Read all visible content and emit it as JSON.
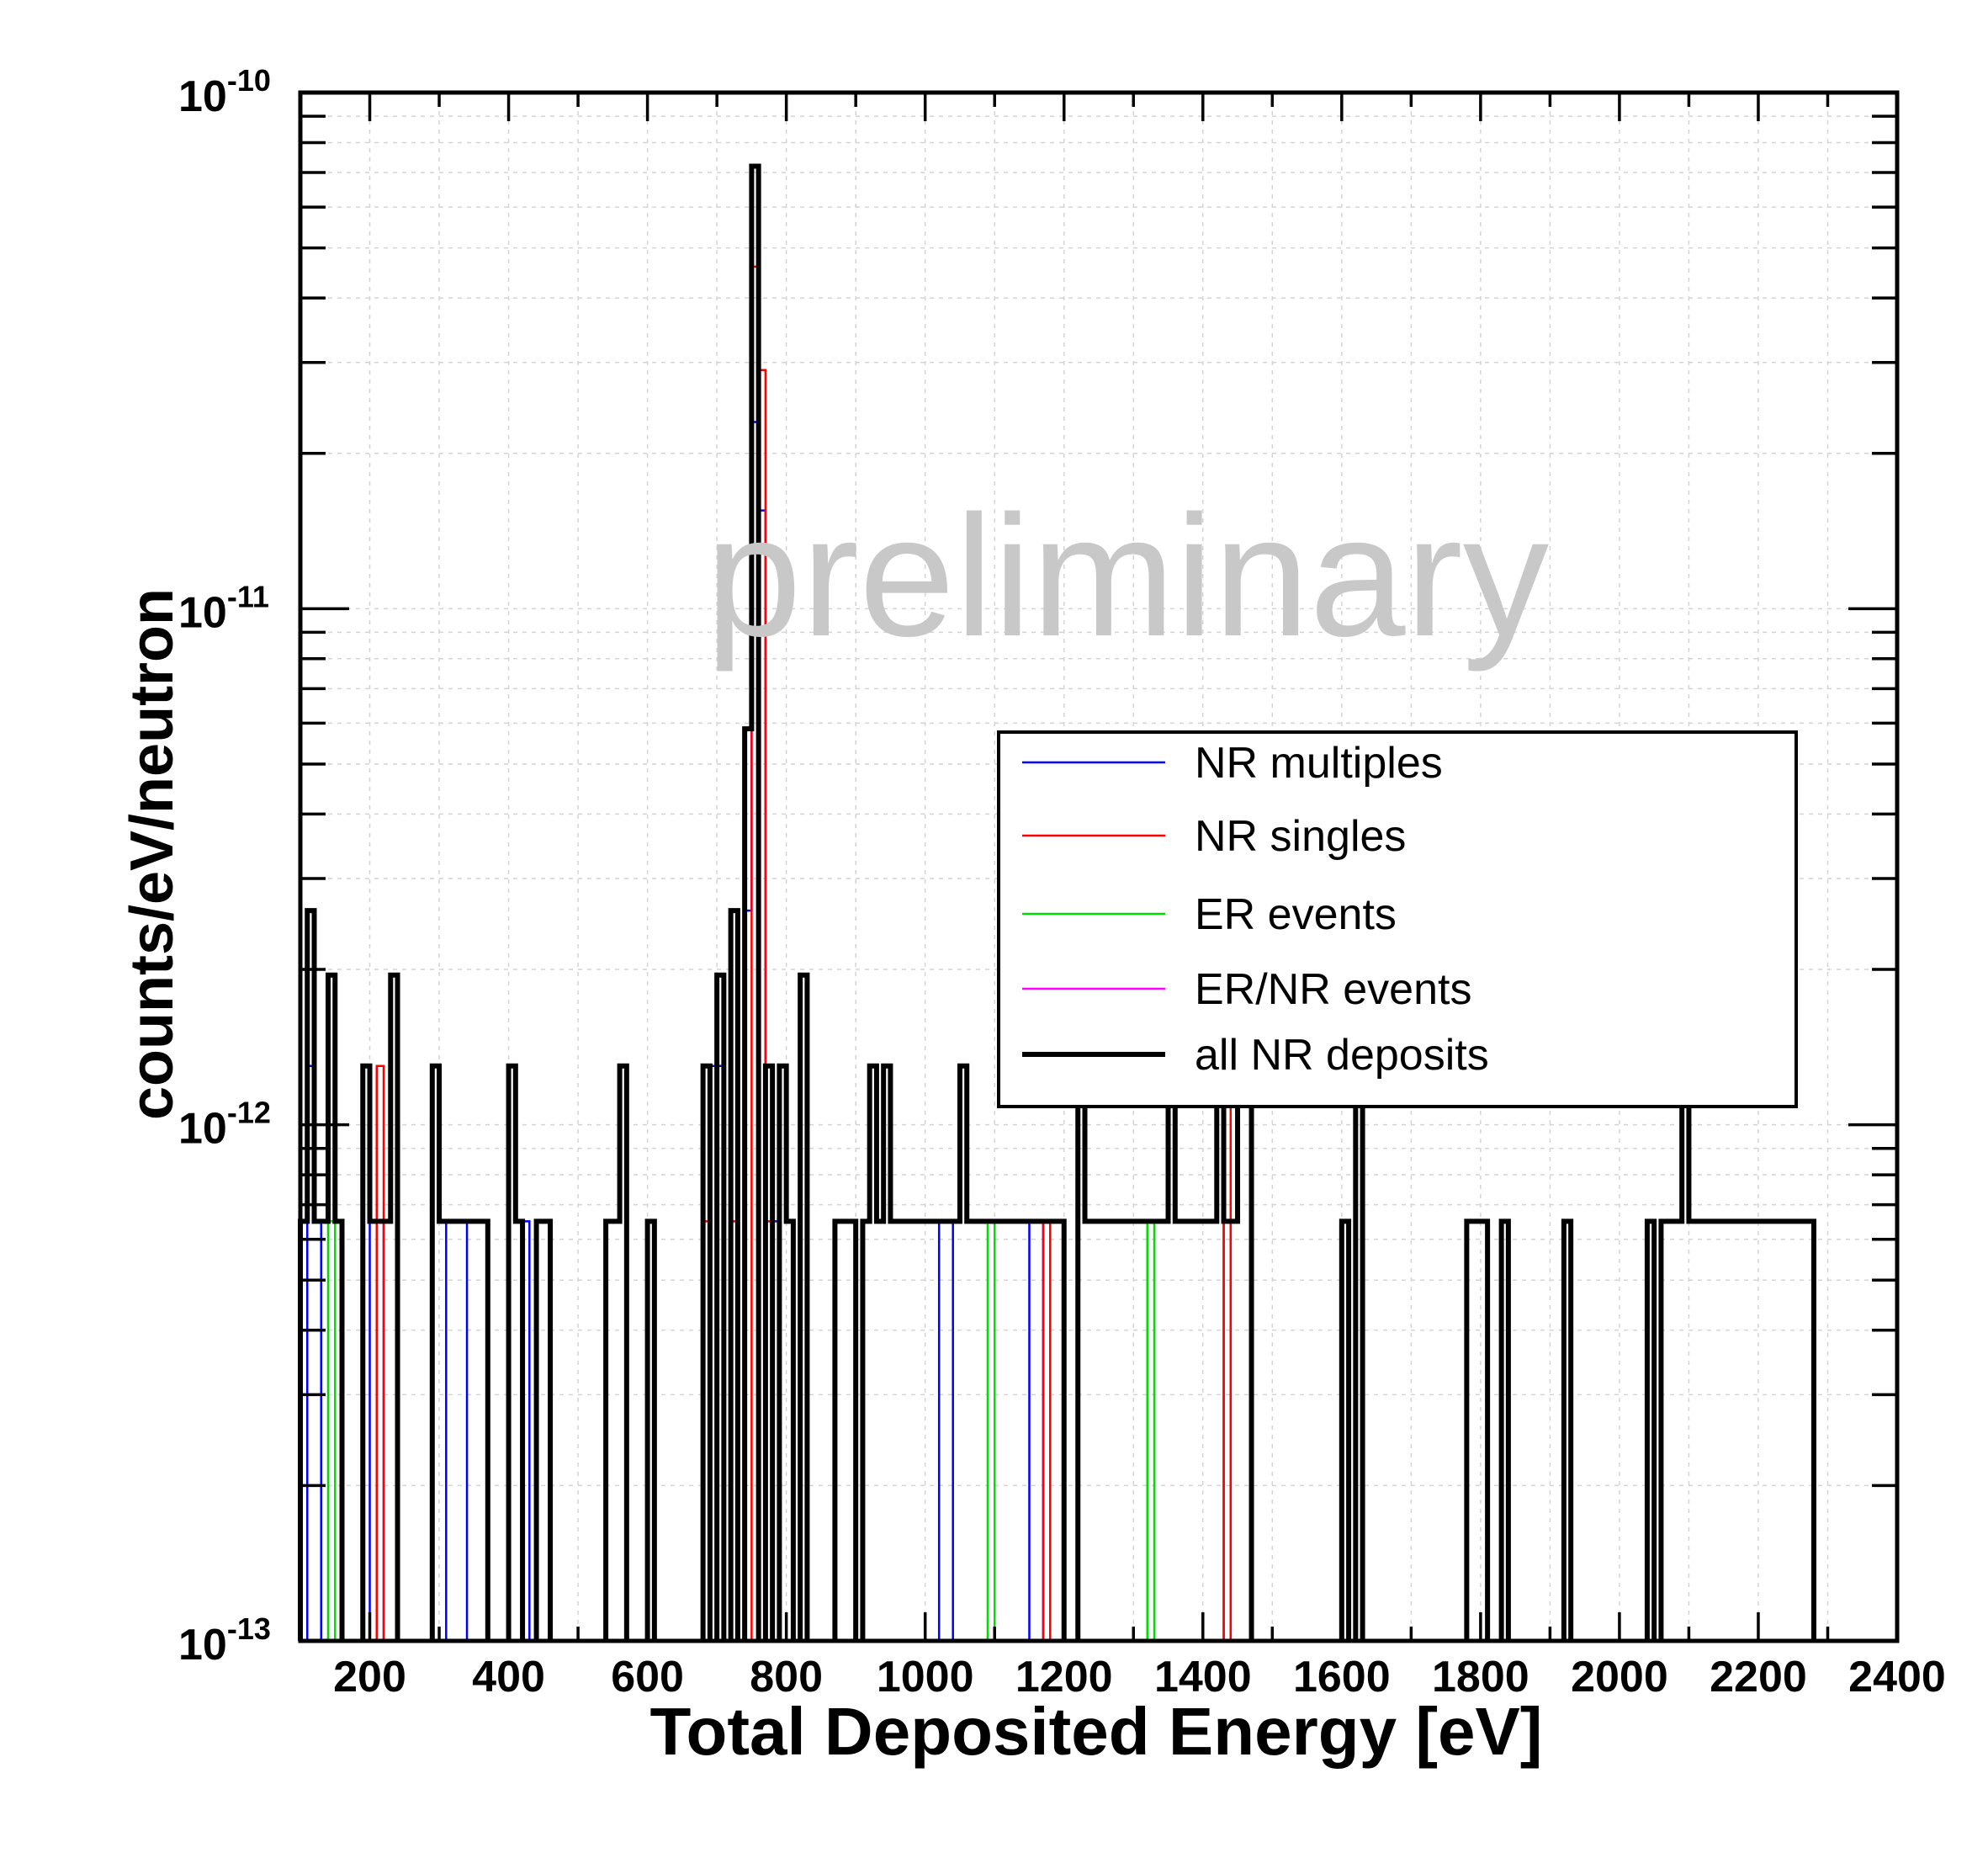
{
  "chart_data": {
    "type": "histogram",
    "xlabel": "Total Deposited Energy [eV]",
    "ylabel": "counts/eV/neutron",
    "watermark": "preliminary",
    "x_scale": "linear",
    "y_scale": "log",
    "xlim": [
      100,
      2400
    ],
    "ylim": [
      1e-13,
      1e-10
    ],
    "bin_width": 10,
    "grid": true,
    "legend_position": "right-middle",
    "x_tick_labels": [
      "200",
      "400",
      "600",
      "800",
      "1000",
      "1200",
      "1400",
      "1600",
      "1800",
      "2000",
      "2200",
      "2400"
    ],
    "x_tick_values": [
      200,
      400,
      600,
      800,
      1000,
      1200,
      1400,
      1600,
      1800,
      2000,
      2200,
      2400
    ],
    "y_tick_labels": [
      {
        "base": "10",
        "exp": "-10",
        "value": 1e-10
      },
      {
        "base": "10",
        "exp": "-11",
        "value": 1e-11
      },
      {
        "base": "10",
        "exp": "-12",
        "value": 1e-12
      },
      {
        "base": "10",
        "exp": "-13",
        "value": 1e-13
      }
    ],
    "series": [
      {
        "name": "all NR deposits",
        "color": "#000000",
        "legend_style": "thick",
        "bins": [
          [
            100,
            6.5e-13
          ],
          [
            110,
            2.6e-12
          ],
          [
            120,
            6.5e-13
          ],
          [
            130,
            6.5e-13
          ],
          [
            140,
            1.95e-12
          ],
          [
            150,
            6.5e-13
          ],
          [
            190,
            1.3e-12
          ],
          [
            200,
            6.5e-13
          ],
          [
            210,
            6.5e-13
          ],
          [
            220,
            6.5e-13
          ],
          [
            230,
            1.95e-12
          ],
          [
            290,
            1.3e-12
          ],
          [
            300,
            6.5e-13
          ],
          [
            310,
            6.5e-13
          ],
          [
            320,
            6.5e-13
          ],
          [
            330,
            6.5e-13
          ],
          [
            340,
            6.5e-13
          ],
          [
            350,
            6.5e-13
          ],
          [
            360,
            6.5e-13
          ],
          [
            400,
            1.3e-12
          ],
          [
            410,
            6.5e-13
          ],
          [
            440,
            6.5e-13
          ],
          [
            450,
            6.5e-13
          ],
          [
            540,
            6.5e-13
          ],
          [
            550,
            6.5e-13
          ],
          [
            560,
            1.3e-12
          ],
          [
            600,
            6.5e-13
          ],
          [
            680,
            1.3e-12
          ],
          [
            700,
            1.95e-12
          ],
          [
            720,
            2.6e-12
          ],
          [
            740,
            5.85e-12
          ],
          [
            750,
            7.2e-11
          ],
          [
            770,
            1.3e-12
          ],
          [
            790,
            1.3e-12
          ],
          [
            800,
            6.5e-13
          ],
          [
            820,
            1.95e-12
          ],
          [
            870,
            6.5e-13
          ],
          [
            880,
            6.5e-13
          ],
          [
            890,
            6.5e-13
          ],
          [
            910,
            6.5e-13
          ],
          [
            920,
            1.3e-12
          ],
          [
            930,
            6.5e-13
          ],
          [
            940,
            1.3e-12
          ],
          [
            950,
            6.5e-13
          ],
          [
            960,
            6.5e-13
          ],
          [
            970,
            6.5e-13
          ],
          [
            980,
            6.5e-13
          ],
          [
            990,
            6.5e-13
          ],
          [
            1000,
            6.5e-13
          ],
          [
            1010,
            6.5e-13
          ],
          [
            1020,
            6.5e-13
          ],
          [
            1030,
            6.5e-13
          ],
          [
            1040,
            6.5e-13
          ],
          [
            1050,
            1.3e-12
          ],
          [
            1060,
            6.5e-13
          ],
          [
            1070,
            6.5e-13
          ],
          [
            1080,
            6.5e-13
          ],
          [
            1090,
            6.5e-13
          ],
          [
            1100,
            6.5e-13
          ],
          [
            1110,
            6.5e-13
          ],
          [
            1120,
            6.5e-13
          ],
          [
            1130,
            6.5e-13
          ],
          [
            1140,
            6.5e-13
          ],
          [
            1150,
            6.5e-13
          ],
          [
            1160,
            6.5e-13
          ],
          [
            1170,
            6.5e-13
          ],
          [
            1180,
            6.5e-13
          ],
          [
            1190,
            6.5e-13
          ],
          [
            1220,
            1.3e-12
          ],
          [
            1230,
            6.5e-13
          ],
          [
            1240,
            6.5e-13
          ],
          [
            1250,
            6.5e-13
          ],
          [
            1260,
            6.5e-13
          ],
          [
            1270,
            6.5e-13
          ],
          [
            1280,
            6.5e-13
          ],
          [
            1290,
            6.5e-13
          ],
          [
            1300,
            6.5e-13
          ],
          [
            1310,
            6.5e-13
          ],
          [
            1320,
            6.5e-13
          ],
          [
            1330,
            6.5e-13
          ],
          [
            1340,
            6.5e-13
          ],
          [
            1350,
            1.3e-12
          ],
          [
            1360,
            6.5e-13
          ],
          [
            1370,
            6.5e-13
          ],
          [
            1380,
            6.5e-13
          ],
          [
            1390,
            6.5e-13
          ],
          [
            1400,
            6.5e-13
          ],
          [
            1410,
            6.5e-13
          ],
          [
            1420,
            1.3e-12
          ],
          [
            1430,
            6.5e-13
          ],
          [
            1440,
            6.5e-13
          ],
          [
            1450,
            1.3e-12
          ],
          [
            1460,
            1.3e-12
          ],
          [
            1600,
            6.5e-13
          ],
          [
            1620,
            1.3e-12
          ],
          [
            1780,
            6.5e-13
          ],
          [
            1790,
            6.5e-13
          ],
          [
            1800,
            6.5e-13
          ],
          [
            1830,
            6.5e-13
          ],
          [
            1920,
            6.5e-13
          ],
          [
            2040,
            6.5e-13
          ],
          [
            2060,
            6.5e-13
          ],
          [
            2070,
            6.5e-13
          ],
          [
            2080,
            6.5e-13
          ],
          [
            2090,
            1.3e-12
          ],
          [
            2100,
            6.5e-13
          ],
          [
            2110,
            6.5e-13
          ],
          [
            2120,
            6.5e-13
          ],
          [
            2130,
            6.5e-13
          ],
          [
            2140,
            6.5e-13
          ],
          [
            2150,
            6.5e-13
          ],
          [
            2160,
            6.5e-13
          ],
          [
            2170,
            6.5e-13
          ],
          [
            2180,
            6.5e-13
          ],
          [
            2190,
            6.5e-13
          ],
          [
            2200,
            6.5e-13
          ],
          [
            2210,
            6.5e-13
          ],
          [
            2220,
            6.5e-13
          ],
          [
            2230,
            6.5e-13
          ],
          [
            2240,
            6.5e-13
          ],
          [
            2250,
            6.5e-13
          ],
          [
            2260,
            6.5e-13
          ],
          [
            2270,
            6.5e-13
          ]
        ]
      },
      {
        "name": "NR multiples",
        "color": "#0000ff",
        "legend_style": "thin",
        "bins": [
          [
            110,
            1.3e-12
          ],
          [
            120,
            6.5e-13
          ],
          [
            200,
            6.5e-13
          ],
          [
            210,
            6.5e-13
          ],
          [
            310,
            6.5e-13
          ],
          [
            320,
            6.5e-13
          ],
          [
            330,
            6.5e-13
          ],
          [
            420,
            6.5e-13
          ],
          [
            690,
            1.3e-12
          ],
          [
            700,
            1.3e-12
          ],
          [
            740,
            2.6e-12
          ],
          [
            750,
            2.3e-11
          ],
          [
            760,
            1.55e-11
          ],
          [
            770,
            1.3e-12
          ],
          [
            780,
            6.5e-13
          ],
          [
            1020,
            6.5e-13
          ],
          [
            1030,
            6.5e-13
          ],
          [
            1150,
            6.5e-13
          ],
          [
            1160,
            6.5e-13
          ],
          [
            1430,
            6.5e-13
          ]
        ]
      },
      {
        "name": "NR singles",
        "color": "#ff0000",
        "legend_style": "thin",
        "bins": [
          [
            210,
            1.3e-12
          ],
          [
            680,
            6.5e-13
          ],
          [
            720,
            6.5e-13
          ],
          [
            750,
            4.6e-11
          ],
          [
            760,
            2.9e-11
          ],
          [
            770,
            6.5e-13
          ],
          [
            1170,
            6.5e-13
          ],
          [
            1430,
            1.3e-12
          ]
        ]
      },
      {
        "name": "ER events",
        "color": "#00dd00",
        "legend_style": "thin",
        "bins": [
          [
            140,
            6.5e-13
          ],
          [
            1090,
            6.5e-13
          ],
          [
            1320,
            6.5e-13
          ]
        ]
      },
      {
        "name": "ER/NR events",
        "color": "#ff00ff",
        "legend_style": "thin",
        "bins": []
      }
    ]
  }
}
